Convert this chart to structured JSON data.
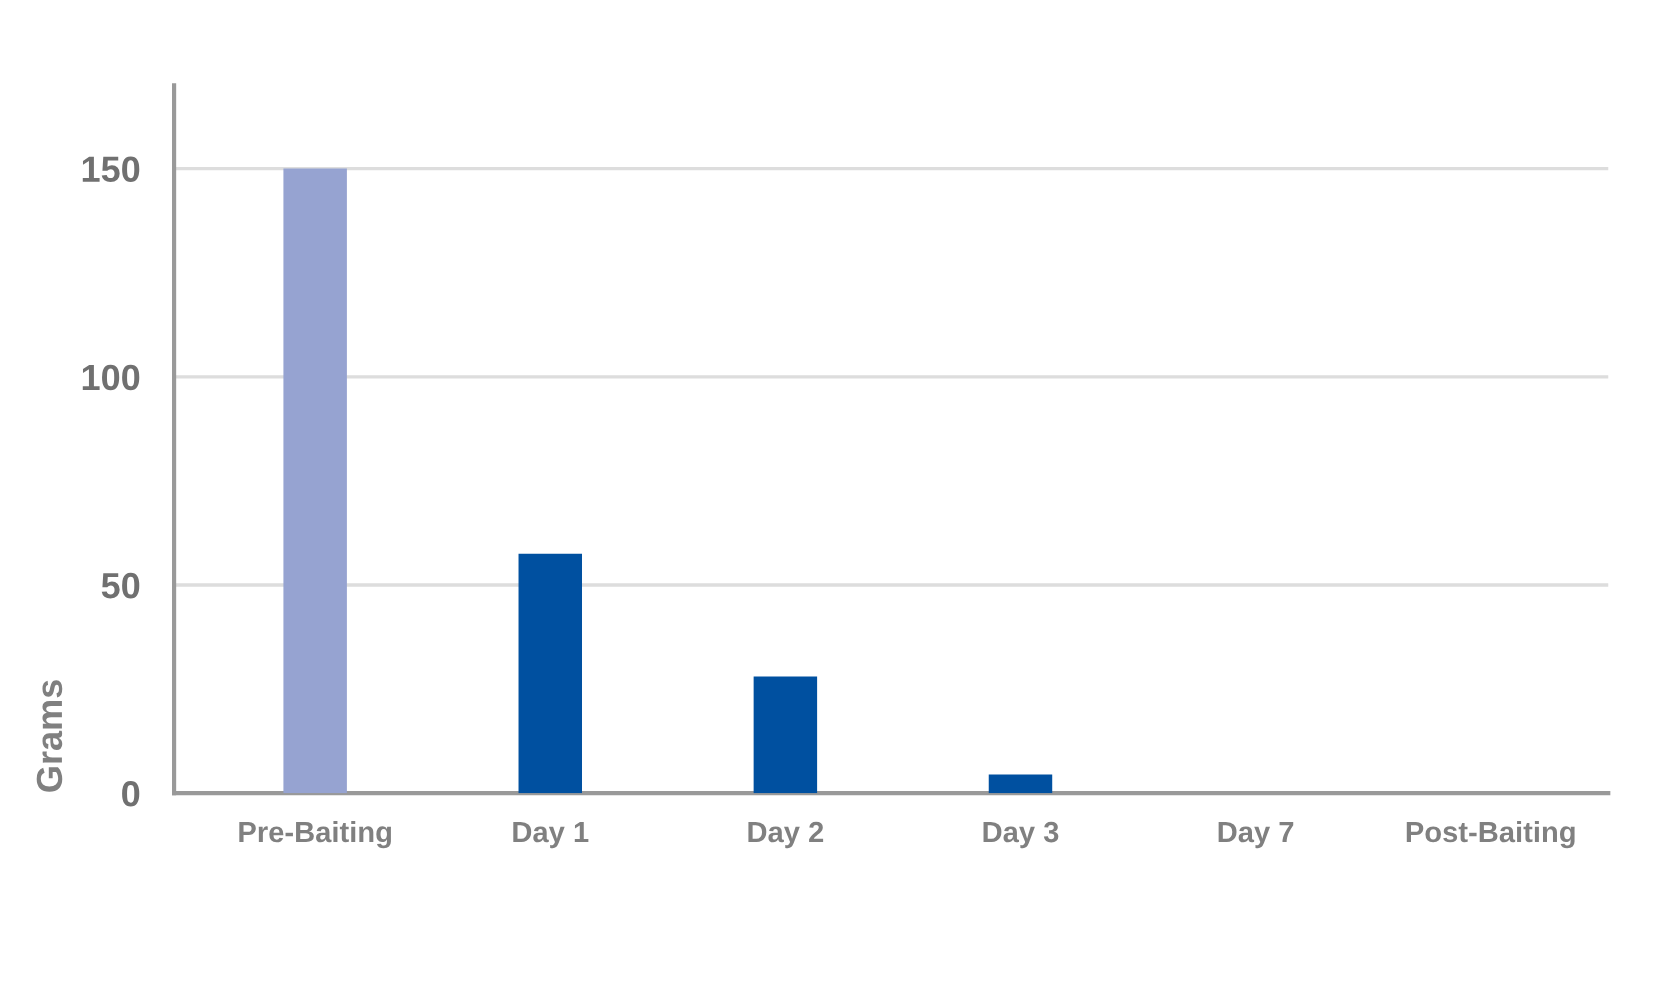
{
  "chart_data": {
    "type": "bar",
    "ylabel": "Grams",
    "categories": [
      "Pre-Baiting",
      "Day 1",
      "Day 2",
      "Day 3",
      "Day 7",
      "Post-Baiting"
    ],
    "values": [
      150,
      57.5,
      28,
      4.5,
      0,
      0
    ],
    "colors": [
      "#96a3d1",
      "#0050a0",
      "#0050a0",
      "#0050a0",
      "#0050a0",
      "#0050a0"
    ],
    "ylim": [
      0,
      170
    ],
    "yticks": [
      0,
      50,
      100,
      150
    ],
    "grid": "y",
    "legend": false
  }
}
